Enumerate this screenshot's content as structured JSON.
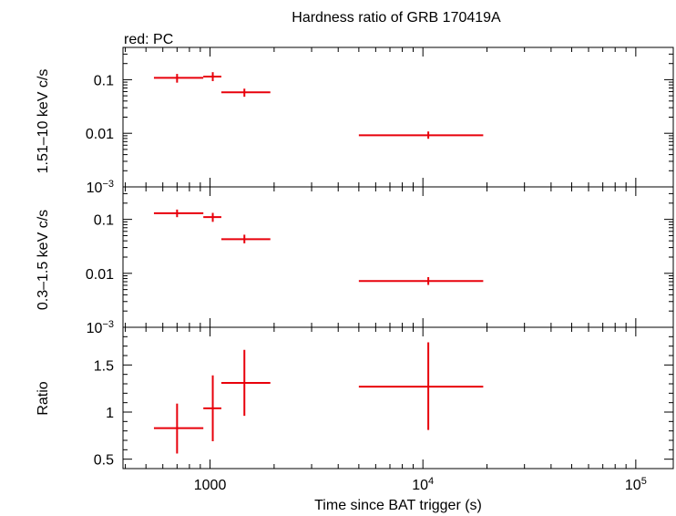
{
  "chart_data": {
    "type": "scatter",
    "title": "Hardness ratio of GRB 170419A",
    "subtitle": "red: PC",
    "xlabel": "Time since BAT trigger (s)",
    "x_scale": "log",
    "xlim": [
      390,
      150000
    ],
    "x_ticks": [
      {
        "value": 1000,
        "label": "1000"
      },
      {
        "value": 10000,
        "label": "10",
        "sup": "4"
      },
      {
        "value": 100000,
        "label": "10",
        "sup": "5"
      }
    ],
    "series_color": "#e8000b",
    "panels": [
      {
        "id": "hard",
        "ylabel": "1.51–10 keV c/s",
        "y_scale": "log",
        "ylim": [
          0.001,
          0.4
        ],
        "y_ticks": [
          {
            "value": 0.1,
            "label": "0.1"
          },
          {
            "value": 0.01,
            "label": "0.01"
          },
          {
            "value": 0.001,
            "label": "10",
            "sup": "−3"
          }
        ],
        "points": [
          {
            "x": 700,
            "x_lo": 545,
            "x_hi": 930,
            "y": 0.108,
            "y_lo": 0.088,
            "y_hi": 0.128
          },
          {
            "x": 1030,
            "x_lo": 930,
            "x_hi": 1130,
            "y": 0.114,
            "y_lo": 0.094,
            "y_hi": 0.138
          },
          {
            "x": 1450,
            "x_lo": 1130,
            "x_hi": 1920,
            "y": 0.058,
            "y_lo": 0.048,
            "y_hi": 0.068
          },
          {
            "x": 10600,
            "x_lo": 5000,
            "x_hi": 19200,
            "y": 0.0092,
            "y_lo": 0.0079,
            "y_hi": 0.0108
          }
        ]
      },
      {
        "id": "soft",
        "ylabel": "0.3–1.5 keV c/s",
        "y_scale": "log",
        "ylim": [
          0.001,
          0.4
        ],
        "y_ticks": [
          {
            "value": 0.1,
            "label": "0.1"
          },
          {
            "value": 0.01,
            "label": "0.01"
          },
          {
            "value": 0.001,
            "label": "10",
            "sup": "−3"
          }
        ],
        "points": [
          {
            "x": 700,
            "x_lo": 545,
            "x_hi": 930,
            "y": 0.13,
            "y_lo": 0.11,
            "y_hi": 0.152
          },
          {
            "x": 1030,
            "x_lo": 930,
            "x_hi": 1130,
            "y": 0.11,
            "y_lo": 0.09,
            "y_hi": 0.132
          },
          {
            "x": 1450,
            "x_lo": 1130,
            "x_hi": 1920,
            "y": 0.043,
            "y_lo": 0.036,
            "y_hi": 0.052
          },
          {
            "x": 10600,
            "x_lo": 5000,
            "x_hi": 19200,
            "y": 0.0072,
            "y_lo": 0.0061,
            "y_hi": 0.0085
          }
        ]
      },
      {
        "id": "ratio",
        "ylabel": "Ratio",
        "y_scale": "linear",
        "ylim": [
          0.4,
          1.9
        ],
        "y_ticks": [
          {
            "value": 0.5,
            "label": "0.5"
          },
          {
            "value": 1,
            "label": "1"
          },
          {
            "value": 1.5,
            "label": "1.5"
          }
        ],
        "points": [
          {
            "x": 700,
            "x_lo": 545,
            "x_hi": 930,
            "y": 0.83,
            "y_lo": 0.56,
            "y_hi": 1.09
          },
          {
            "x": 1030,
            "x_lo": 930,
            "x_hi": 1130,
            "y": 1.04,
            "y_lo": 0.69,
            "y_hi": 1.39
          },
          {
            "x": 1450,
            "x_lo": 1130,
            "x_hi": 1920,
            "y": 1.31,
            "y_lo": 0.96,
            "y_hi": 1.66
          },
          {
            "x": 10600,
            "x_lo": 5000,
            "x_hi": 19200,
            "y": 1.27,
            "y_lo": 0.81,
            "y_hi": 1.74
          }
        ]
      }
    ]
  }
}
